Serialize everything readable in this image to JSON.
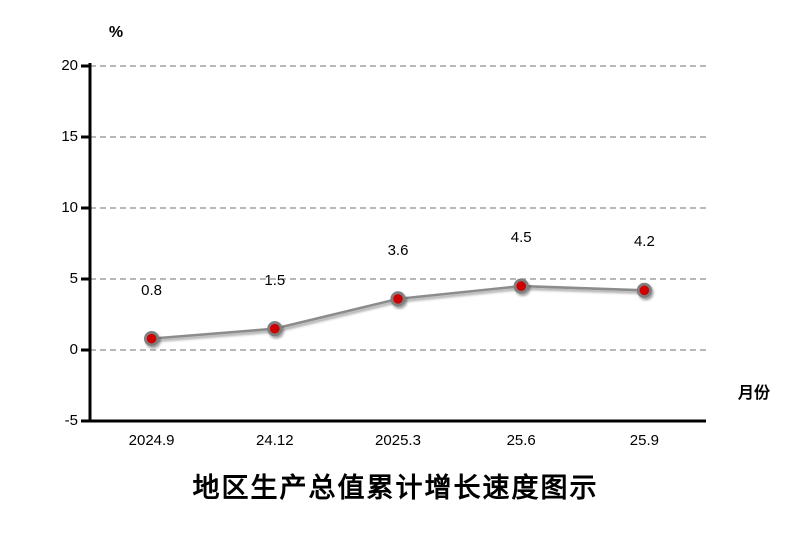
{
  "chart_data": {
    "type": "line",
    "title": "地区生产总值累计增长速度图示",
    "ylabel": "%",
    "xlabel": "月份",
    "categories": [
      "2024.9",
      "24.12",
      "2025.3",
      "25.6",
      "25.9"
    ],
    "values": [
      0.8,
      1.5,
      3.6,
      4.5,
      4.2
    ],
    "data_labels": [
      "0.8",
      "1.5",
      "3.6",
      "4.5",
      "4.2"
    ],
    "ylim": [
      -5,
      20
    ],
    "yticks": [
      20,
      15,
      10,
      5,
      0,
      -5
    ],
    "grid": "horizontal-dashed",
    "legend": "none",
    "colors": {
      "marker_fill": "#ce0000",
      "marker_ring": "#7f7f7f",
      "line": "#8c8c8c",
      "gridline": "#8e8e8e",
      "axis": "#000000",
      "text": "#000000",
      "background": "#ffffff"
    }
  }
}
